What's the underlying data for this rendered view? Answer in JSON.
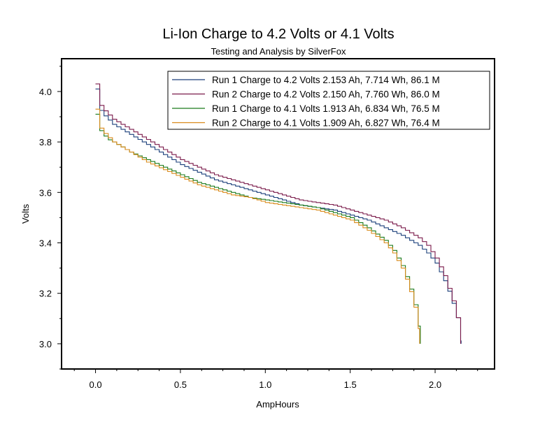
{
  "chart_data": {
    "type": "line",
    "title": "Li-Ion Charge to 4.2 Volts or 4.1 Volts",
    "subtitle": "Testing and Analysis by SilverFox",
    "xlabel": "AmpHours",
    "ylabel": "Volts",
    "xlim": [
      -0.2,
      2.35
    ],
    "ylim": [
      2.9,
      4.13
    ],
    "x_ticks": [
      {
        "value": 0.0,
        "label": "0.0"
      },
      {
        "value": 0.5,
        "label": "0.5"
      },
      {
        "value": 1.0,
        "label": "1.0"
      },
      {
        "value": 1.5,
        "label": "1.5"
      },
      {
        "value": 2.0,
        "label": "2.0"
      }
    ],
    "x_minor_ticks": [
      -0.125,
      0.125,
      0.25,
      0.375,
      0.625,
      0.75,
      0.875,
      1.125,
      1.25,
      1.375,
      1.625,
      1.75,
      1.875,
      2.125,
      2.25
    ],
    "y_ticks": [
      {
        "value": 3.0,
        "label": "3.0"
      },
      {
        "value": 3.2,
        "label": "3.2"
      },
      {
        "value": 3.4,
        "label": "3.4"
      },
      {
        "value": 3.6,
        "label": "3.6"
      },
      {
        "value": 3.8,
        "label": "3.8"
      },
      {
        "value": 4.0,
        "label": "4.0"
      }
    ],
    "y_minor_ticks": [
      2.9,
      3.1,
      3.3,
      3.5,
      3.7,
      3.9,
      4.1
    ],
    "legend_position": "top-right",
    "series": [
      {
        "name": "Run 1 Charge to 4.2 Volts  2.153 Ah, 7.714 Wh, 86.1 M",
        "color": "#1a3f7a",
        "x": [
          0,
          0.005,
          0.01,
          0.02,
          0.04,
          0.07,
          0.1,
          0.15,
          0.2,
          0.3,
          0.4,
          0.5,
          0.6,
          0.7,
          0.8,
          0.9,
          1.0,
          1.1,
          1.2,
          1.3,
          1.4,
          1.5,
          1.6,
          1.7,
          1.8,
          1.9,
          1.95,
          2.0,
          2.05,
          2.08,
          2.1,
          2.12,
          2.135,
          2.145,
          2.153
        ],
        "y": [
          4.01,
          3.97,
          3.95,
          3.93,
          3.91,
          3.89,
          3.87,
          3.85,
          3.83,
          3.79,
          3.75,
          3.71,
          3.68,
          3.65,
          3.63,
          3.61,
          3.59,
          3.57,
          3.55,
          3.54,
          3.53,
          3.51,
          3.49,
          3.46,
          3.43,
          3.39,
          3.36,
          3.32,
          3.25,
          3.2,
          3.16,
          3.12,
          3.07,
          3.03,
          3.0
        ]
      },
      {
        "name": "Run 2 Charge to 4.2 Volts  2.150 Ah, 7.760 Wh, 86.0 M",
        "color": "#7a1a4a",
        "x": [
          0,
          0.005,
          0.01,
          0.02,
          0.04,
          0.07,
          0.1,
          0.15,
          0.2,
          0.3,
          0.4,
          0.5,
          0.6,
          0.7,
          0.8,
          0.9,
          1.0,
          1.1,
          1.2,
          1.3,
          1.4,
          1.5,
          1.6,
          1.7,
          1.8,
          1.9,
          1.95,
          2.0,
          2.05,
          2.08,
          2.1,
          2.12,
          2.135,
          2.145,
          2.15
        ],
        "y": [
          4.03,
          3.99,
          3.97,
          3.95,
          3.93,
          3.91,
          3.89,
          3.87,
          3.85,
          3.81,
          3.77,
          3.73,
          3.7,
          3.67,
          3.65,
          3.63,
          3.61,
          3.59,
          3.57,
          3.56,
          3.55,
          3.53,
          3.51,
          3.49,
          3.46,
          3.42,
          3.39,
          3.34,
          3.27,
          3.21,
          3.17,
          3.12,
          3.07,
          3.03,
          3.0
        ]
      },
      {
        "name": "Run 1 Charge to 4.1 Volts  1.913 Ah, 6.834 Wh, 76.5 M",
        "color": "#1a7a1a",
        "x": [
          0,
          0.005,
          0.01,
          0.02,
          0.04,
          0.07,
          0.1,
          0.15,
          0.2,
          0.3,
          0.4,
          0.5,
          0.6,
          0.7,
          0.8,
          0.9,
          1.0,
          1.1,
          1.2,
          1.3,
          1.4,
          1.5,
          1.6,
          1.7,
          1.75,
          1.8,
          1.84,
          1.87,
          1.89,
          1.9,
          1.91,
          1.913
        ],
        "y": [
          3.91,
          3.88,
          3.86,
          3.85,
          3.83,
          3.81,
          3.8,
          3.78,
          3.76,
          3.73,
          3.7,
          3.67,
          3.64,
          3.62,
          3.6,
          3.58,
          3.57,
          3.56,
          3.55,
          3.54,
          3.52,
          3.5,
          3.46,
          3.41,
          3.37,
          3.31,
          3.24,
          3.17,
          3.11,
          3.07,
          3.02,
          3.0
        ]
      },
      {
        "name": "Run 2 Charge to 4.1 Volts  1.909 Ah, 6.827 Wh, 76.4 M",
        "color": "#d98a1a",
        "x": [
          0,
          0.005,
          0.01,
          0.02,
          0.04,
          0.07,
          0.1,
          0.15,
          0.2,
          0.3,
          0.4,
          0.5,
          0.6,
          0.7,
          0.8,
          0.9,
          1.0,
          1.1,
          1.2,
          1.3,
          1.4,
          1.5,
          1.6,
          1.7,
          1.75,
          1.8,
          1.84,
          1.87,
          1.89,
          1.9,
          1.905,
          1.909
        ],
        "y": [
          3.93,
          3.89,
          3.87,
          3.86,
          3.84,
          3.82,
          3.8,
          3.78,
          3.76,
          3.72,
          3.69,
          3.66,
          3.63,
          3.61,
          3.59,
          3.58,
          3.56,
          3.55,
          3.54,
          3.53,
          3.51,
          3.49,
          3.45,
          3.4,
          3.36,
          3.3,
          3.23,
          3.16,
          3.1,
          3.06,
          3.02,
          3.0
        ]
      }
    ]
  }
}
